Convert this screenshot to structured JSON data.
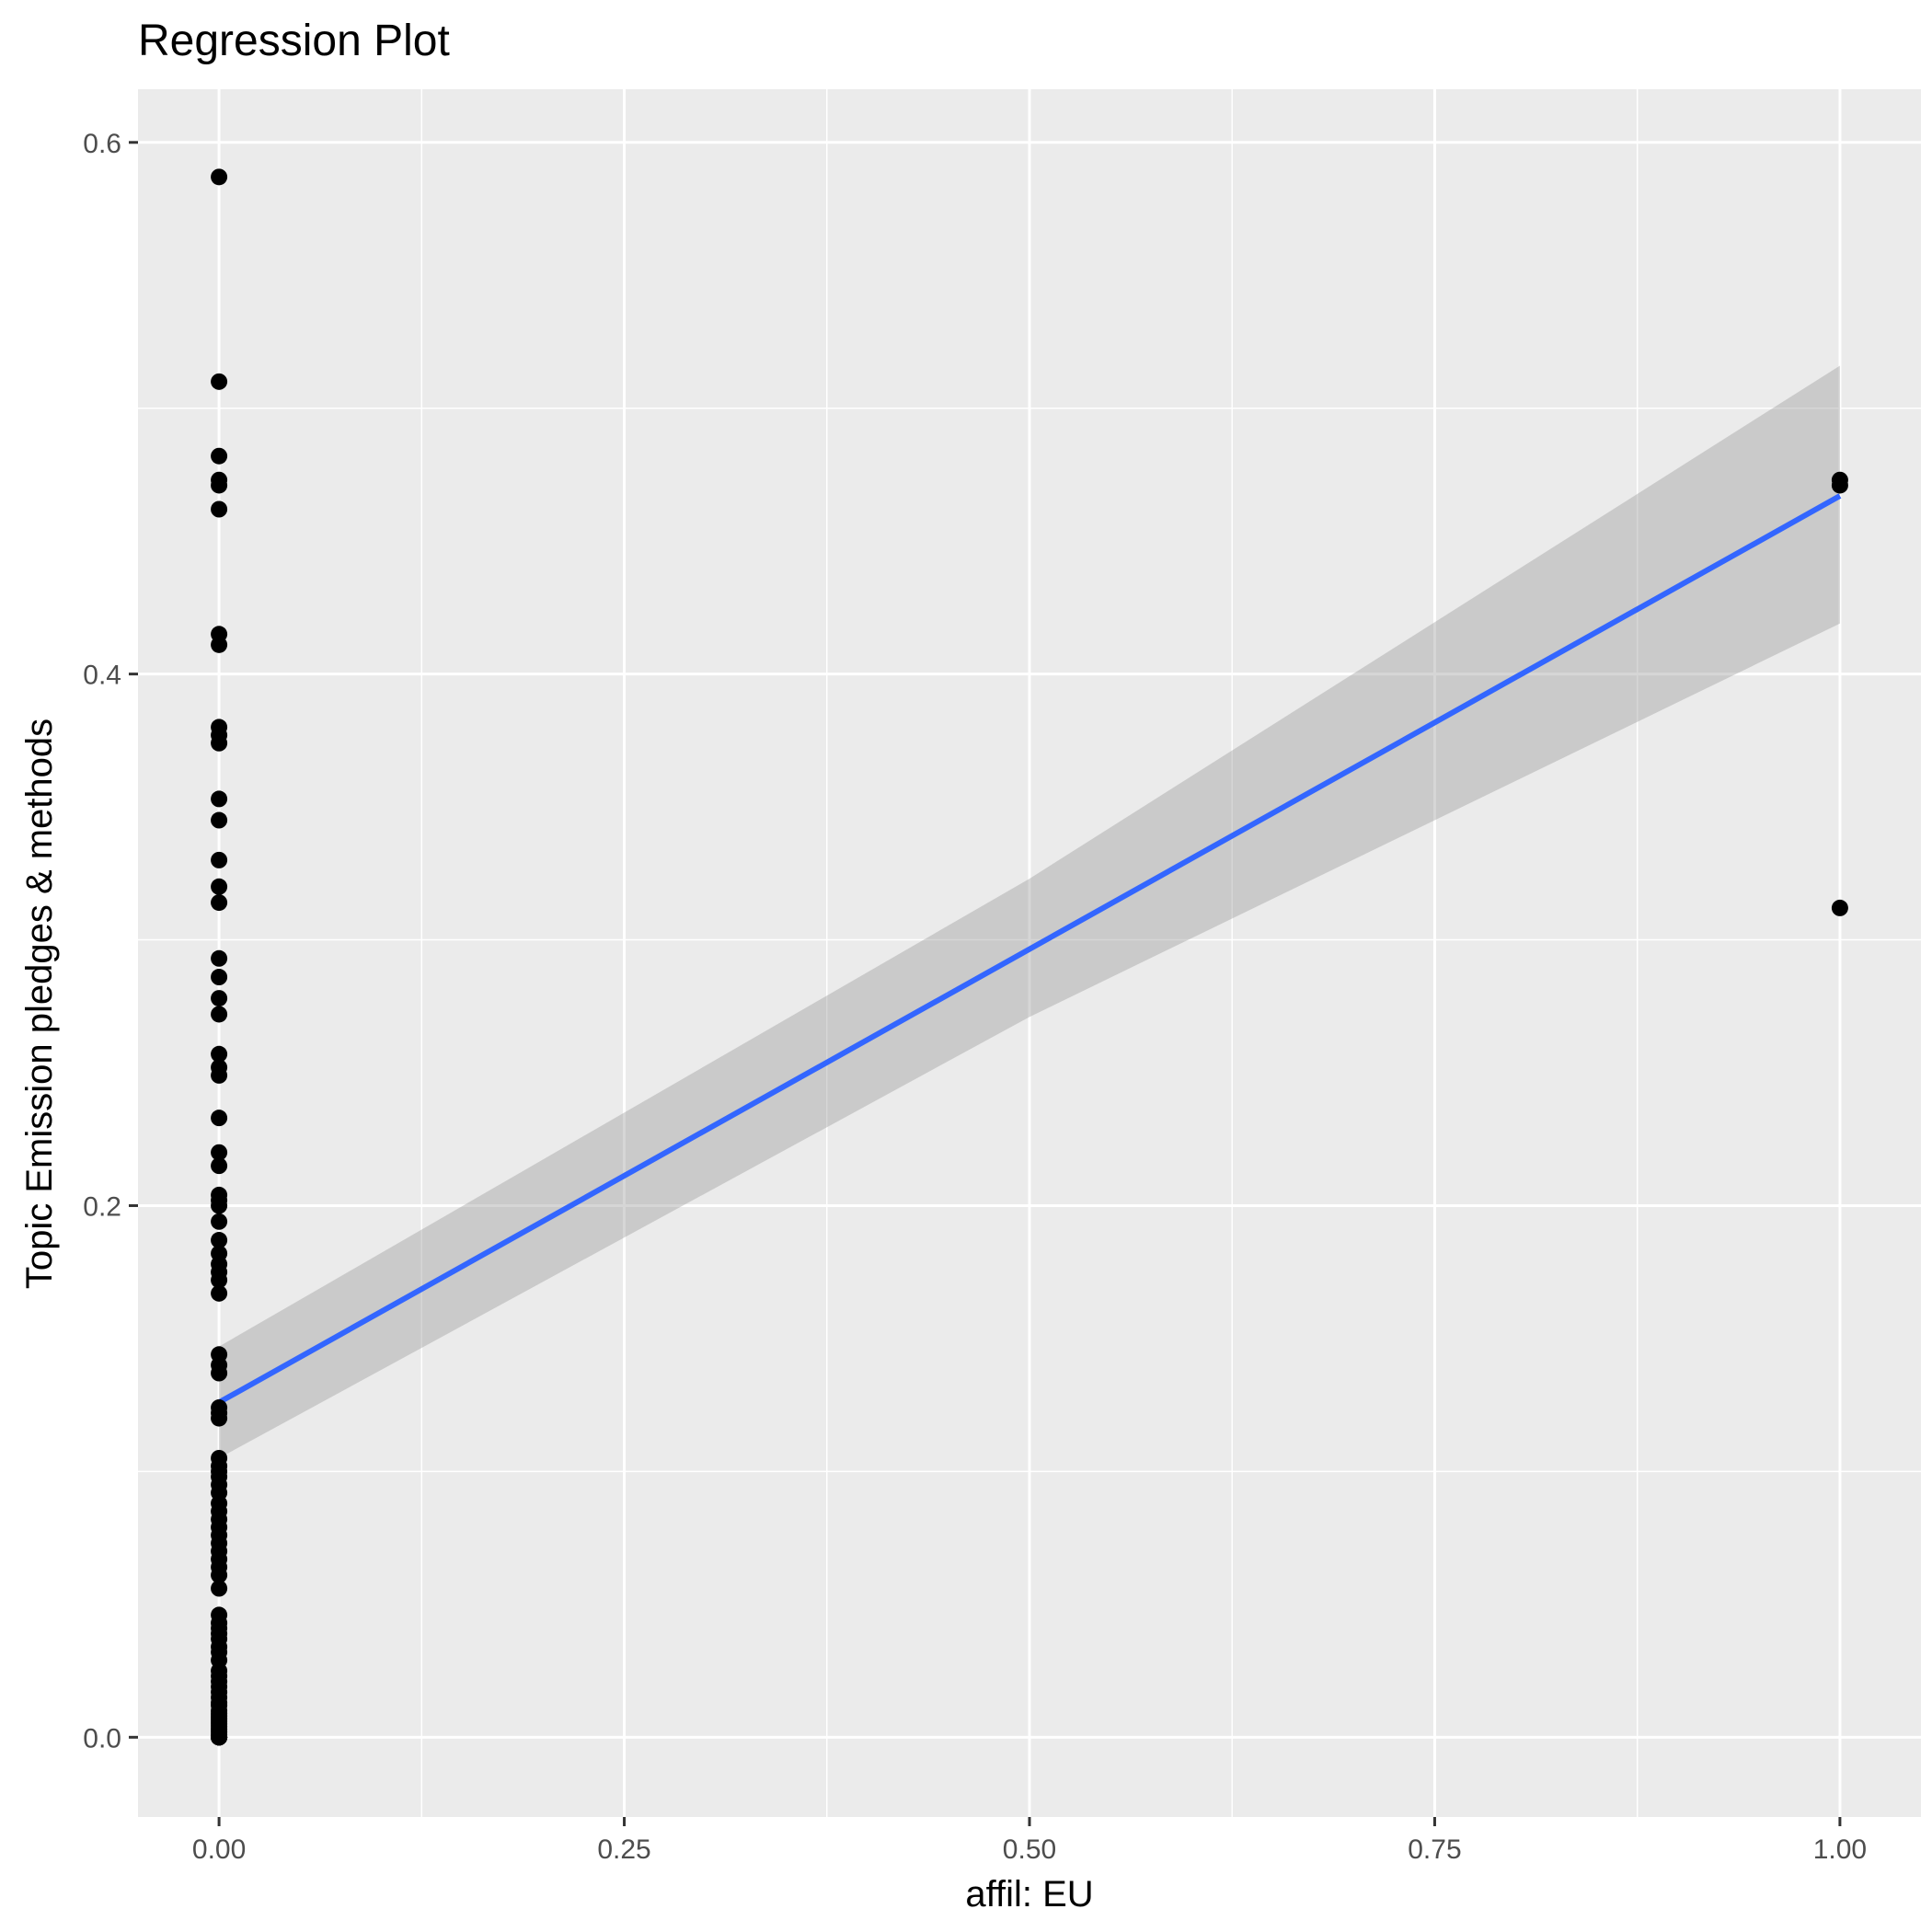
{
  "chart_data": {
    "type": "scatter",
    "title": "Regression Plot",
    "xlabel": "affil: EU",
    "ylabel": "Topic Emission pledges & methods",
    "xlim": [
      -0.05,
      1.05
    ],
    "ylim": [
      -0.03,
      0.62
    ],
    "x_ticks": [
      0,
      0.25,
      0.5,
      0.75,
      1
    ],
    "x_tick_labels": [
      "0.00",
      "0.25",
      "0.50",
      "0.75",
      "1.00"
    ],
    "y_ticks": [
      0,
      0.2,
      0.4,
      0.6
    ],
    "y_tick_labels": [
      "0.0",
      "0.2",
      "0.4",
      "0.6"
    ],
    "grid": true,
    "legend": "none",
    "colors": {
      "panel": "#ebebeb",
      "grid": "#ffffff",
      "points": "#000000",
      "fit_line": "#3366ff",
      "confidence_band": "#999999"
    },
    "series": [
      {
        "kind": "points",
        "x": [
          0,
          0,
          0,
          0,
          0,
          0,
          0,
          0,
          0,
          0,
          0,
          0,
          0,
          0,
          0,
          0,
          0,
          0,
          0,
          0,
          0,
          0,
          0,
          0,
          0,
          0,
          0,
          0,
          0,
          0,
          0,
          0,
          0,
          0,
          0,
          0,
          0,
          0,
          0,
          0,
          0,
          0,
          0,
          0,
          0,
          0,
          0,
          0,
          0,
          0,
          0,
          0,
          0,
          0,
          0,
          0,
          0,
          0,
          0,
          0,
          0,
          0,
          0,
          0,
          0,
          0,
          0,
          0,
          0,
          0,
          0,
          0,
          0,
          0,
          0,
          0,
          0,
          0,
          0,
          0,
          0,
          0,
          0,
          0,
          0,
          0,
          0,
          0,
          0,
          0,
          0,
          0,
          0,
          0,
          0,
          1,
          1,
          1
        ],
        "y": [
          0.587,
          0.51,
          0.482,
          0.473,
          0.471,
          0.462,
          0.415,
          0.411,
          0.38,
          0.377,
          0.374,
          0.353,
          0.345,
          0.33,
          0.32,
          0.314,
          0.293,
          0.286,
          0.278,
          0.272,
          0.257,
          0.252,
          0.249,
          0.233,
          0.22,
          0.215,
          0.204,
          0.202,
          0.2,
          0.194,
          0.187,
          0.182,
          0.178,
          0.175,
          0.172,
          0.167,
          0.144,
          0.14,
          0.137,
          0.124,
          0.122,
          0.12,
          0.105,
          0.102,
          0.1,
          0.098,
          0.095,
          0.092,
          0.088,
          0.085,
          0.082,
          0.079,
          0.076,
          0.073,
          0.07,
          0.067,
          0.064,
          0.061,
          0.056,
          0.046,
          0.043,
          0.041,
          0.039,
          0.037,
          0.034,
          0.032,
          0.029,
          0.025,
          0.023,
          0.021,
          0.019,
          0.017,
          0.015,
          0.013,
          0.012,
          0.01,
          0.009,
          0.008,
          0.007,
          0.006,
          0.005,
          0.004,
          0.003,
          0.002,
          0.001,
          0.0,
          0.0,
          0.0,
          0.0,
          0.0,
          0.0,
          0.0,
          0.0,
          0.0,
          0.0,
          0.473,
          0.471,
          0.312
        ]
      },
      {
        "kind": "fit_line",
        "x": [
          0,
          1
        ],
        "y": [
          0.126,
          0.467
        ]
      },
      {
        "kind": "confidence_band",
        "x": [
          0,
          0.5,
          1
        ],
        "lower": [
          0.105,
          0.271,
          0.419
        ],
        "upper": [
          0.147,
          0.323,
          0.516
        ]
      }
    ]
  }
}
